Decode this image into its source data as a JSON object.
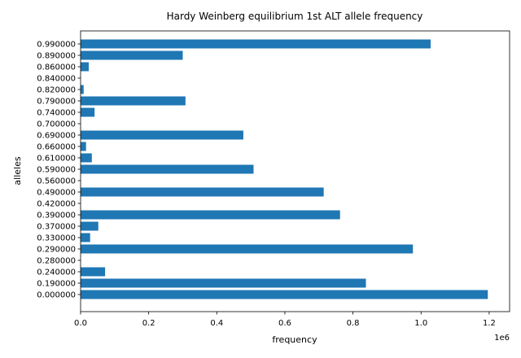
{
  "chart_data": {
    "type": "bar",
    "orientation": "horizontal",
    "title": "Hardy Weinberg equilibrium 1st ALT allele frequency",
    "xlabel": "frequency",
    "ylabel": "alleles",
    "x_offset_label": "1e6",
    "xlim": [
      0,
      1260000
    ],
    "x_ticks": [
      0,
      200000,
      400000,
      600000,
      800000,
      1000000,
      1200000
    ],
    "x_tick_labels": [
      "0.0",
      "0.2",
      "0.4",
      "0.6",
      "0.8",
      "1.0",
      "1.2"
    ],
    "grid": false,
    "color": "#1f77b4",
    "categories": [
      "0.000000",
      "0.190000",
      "0.240000",
      "0.280000",
      "0.290000",
      "0.330000",
      "0.370000",
      "0.390000",
      "0.420000",
      "0.490000",
      "0.560000",
      "0.590000",
      "0.610000",
      "0.660000",
      "0.690000",
      "0.700000",
      "0.740000",
      "0.790000",
      "0.820000",
      "0.840000",
      "0.860000",
      "0.890000",
      "0.990000"
    ],
    "values": [
      1196000,
      838000,
      72000,
      0,
      976000,
      28000,
      52000,
      762000,
      0,
      714000,
      0,
      508000,
      33000,
      16000,
      478000,
      0,
      41000,
      308000,
      9000,
      0,
      24000,
      300000,
      1028000
    ]
  }
}
